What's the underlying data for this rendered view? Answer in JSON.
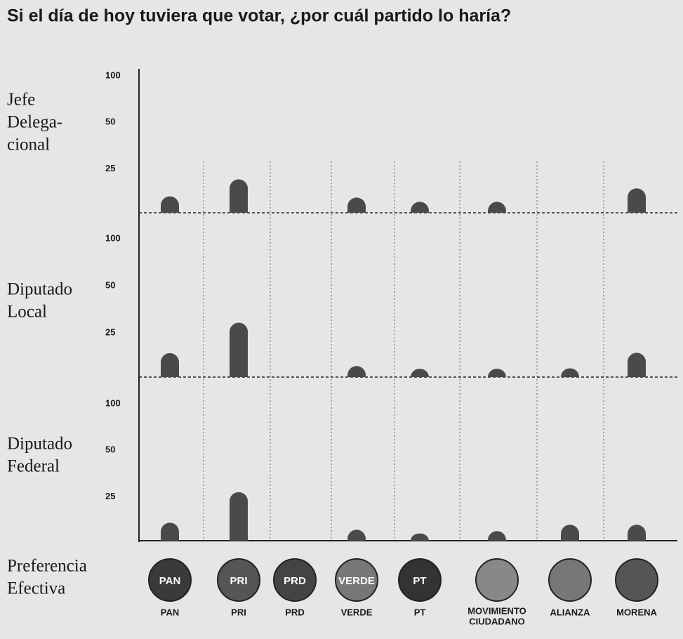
{
  "title": "Si el día de hoy tuviera que votar, ¿por cuál partido lo haría?",
  "legend_label": [
    "Preferencia",
    "Efectiva"
  ],
  "categories": [
    "PAN",
    "PRI",
    "PRD",
    "VERDE",
    "PT",
    [
      "MOVIMIENTO",
      "CIUDADANO"
    ],
    "ALIANZA",
    "MORENA"
  ],
  "logos": [
    "PAN",
    "PRI",
    "PRD",
    "VERDE",
    "PT",
    null,
    null,
    null
  ],
  "chart_data": [
    {
      "type": "bar",
      "title": [
        "Jefe",
        "Delega-",
        "cional"
      ],
      "log_scale": true,
      "ylim": [
        13,
        100
      ],
      "yticks": [
        100,
        50,
        25
      ],
      "color": "#4a4a4a",
      "values": [
        16.6,
        21.4,
        null,
        16.3,
        15.3,
        15.3,
        null,
        18.7
      ]
    },
    {
      "type": "bar",
      "title": [
        "Diputado",
        "Local"
      ],
      "log_scale": true,
      "ylim": [
        13,
        100
      ],
      "yticks": [
        100,
        50,
        25
      ],
      "color": "#4a4a4a",
      "values": [
        18.5,
        29,
        null,
        15.3,
        14.7,
        14.7,
        14.8,
        18.6
      ]
    },
    {
      "type": "bar",
      "title": [
        "Diputado",
        "Federal"
      ],
      "log_scale": true,
      "ylim": [
        13,
        100
      ],
      "yticks": [
        100,
        50,
        25
      ],
      "color": "#4a4a4a",
      "values": [
        17,
        26.8,
        null,
        15.3,
        14.5,
        15,
        16.5,
        16.5
      ]
    }
  ]
}
